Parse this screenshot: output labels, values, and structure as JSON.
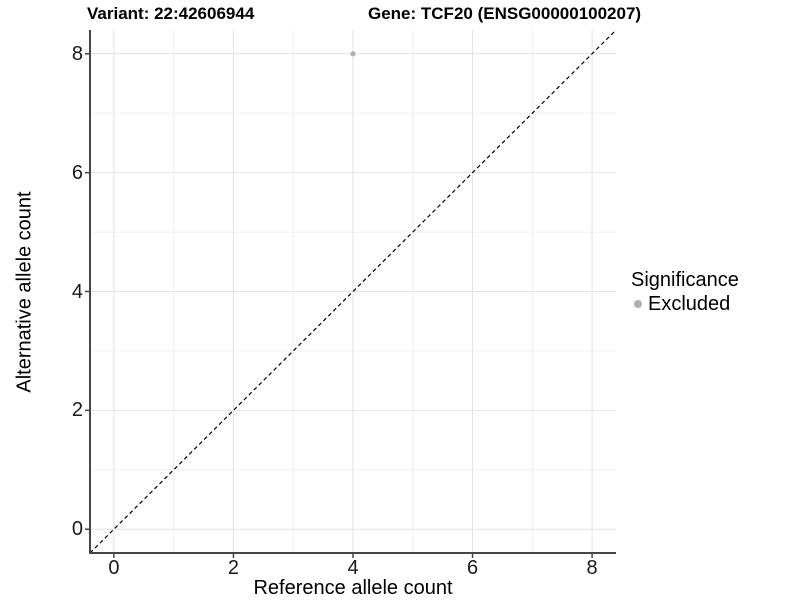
{
  "titles": {
    "variant": "Variant: 22:42606944",
    "gene": "Gene: TCF20 (ENSG00000100207)"
  },
  "chart_data": {
    "type": "scatter",
    "title_left": "Variant: 22:42606944",
    "title_right": "Gene: TCF20 (ENSG00000100207)",
    "xlabel": "Reference allele count",
    "ylabel": "Alternative allele count",
    "xlim": [
      -0.4,
      8.4
    ],
    "ylim": [
      -0.4,
      8.4
    ],
    "x_ticks": [
      0,
      2,
      4,
      6,
      8
    ],
    "y_ticks": [
      0,
      2,
      4,
      6,
      8
    ],
    "x_minor_ticks": [
      1,
      3,
      5,
      7
    ],
    "y_minor_ticks": [
      1,
      3,
      5,
      7
    ],
    "grid": true,
    "series": [
      {
        "name": "Excluded",
        "color": "#b0b0b0",
        "points": [
          {
            "x": 4,
            "y": 8
          }
        ]
      }
    ],
    "reference_line": {
      "slope": 1,
      "intercept": 0,
      "style": "dashed",
      "color": "#000000"
    },
    "legend": {
      "title": "Significance",
      "position": "right",
      "entries": [
        {
          "label": "Excluded",
          "color": "#b0b0b0"
        }
      ]
    },
    "colors": {
      "background": "#ffffff",
      "major_grid": "#e2e2e2",
      "minor_grid": "#f0f0f0",
      "axis_line": "#464646",
      "tick_mark": "#464646",
      "tick_text": "#1a1a1a"
    }
  }
}
